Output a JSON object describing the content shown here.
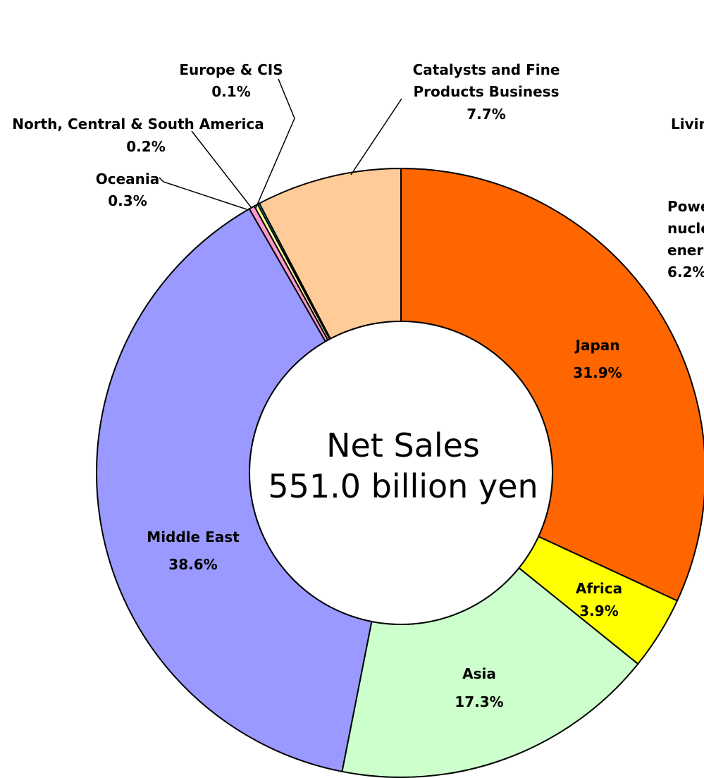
{
  "chart_data": {
    "type": "donut",
    "center_text": [
      "Net Sales",
      "551.0 billion yen"
    ],
    "slices": [
      {
        "name": "Japan",
        "value": 31.9,
        "label": "31.9%",
        "color": "#FF6600"
      },
      {
        "name": "Africa",
        "value": 3.9,
        "label": "3.9%",
        "color": "#FFFF00"
      },
      {
        "name": "Asia",
        "value": 17.3,
        "label": "17.3%",
        "color": "#CCFFCC"
      },
      {
        "name": "Middle East",
        "value": 38.6,
        "label": "38.6%",
        "color": "#9999FF"
      },
      {
        "name": "Oceania",
        "value": 0.3,
        "label": "0.3%",
        "color": "#FF99CC"
      },
      {
        "name": "North, Central & South America",
        "value": 0.2,
        "label": "0.2%",
        "color": "#FFFF99"
      },
      {
        "name": "Europe & CIS",
        "value": 0.1,
        "label": "0.1%",
        "color": "#00FFFF"
      },
      {
        "name": "Catalysts and Fine Products Business",
        "value": 7.7,
        "label": "7.7%",
        "color": "#FFCC99"
      },
      {
        "name": "Living",
        "value": null,
        "label": "",
        "color": "#ffffff"
      },
      {
        "name": "Power / nuclear / energy",
        "value": 6.2,
        "label": "6.2%",
        "color": "#ffffff"
      }
    ],
    "outside_labels": {
      "europe": [
        "Europe & CIS",
        "0.1%"
      ],
      "americas": [
        "North, Central & South America",
        "0.2%"
      ],
      "oceania": [
        "Oceania",
        "0.3%"
      ],
      "catalysts": [
        "Catalysts and Fine",
        "Products Business",
        "7.7%"
      ],
      "living": "Livin",
      "power": [
        "Powe",
        "nucle",
        "ener",
        "6.2%"
      ]
    }
  }
}
